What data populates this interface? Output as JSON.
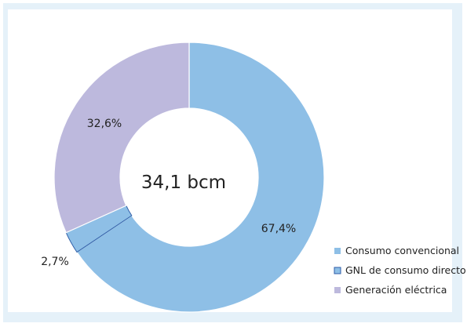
{
  "chart_data": {
    "type": "pie",
    "title": "",
    "center_label": "34,1 bcm",
    "slices": [
      {
        "name": "Consumo convencional",
        "value": 67.4,
        "label": "67,4%",
        "color": "#8ebfe6"
      },
      {
        "name": "GNL de consumo directo",
        "value": 2.7,
        "label": "2,7%",
        "color": "#8ebfe6",
        "outline": "#2f5ea8"
      },
      {
        "name": "Generación eléctrica",
        "value": 32.6,
        "label": "32,6%",
        "color": "#bdb9dd"
      }
    ],
    "legend_position": "bottom-right"
  }
}
